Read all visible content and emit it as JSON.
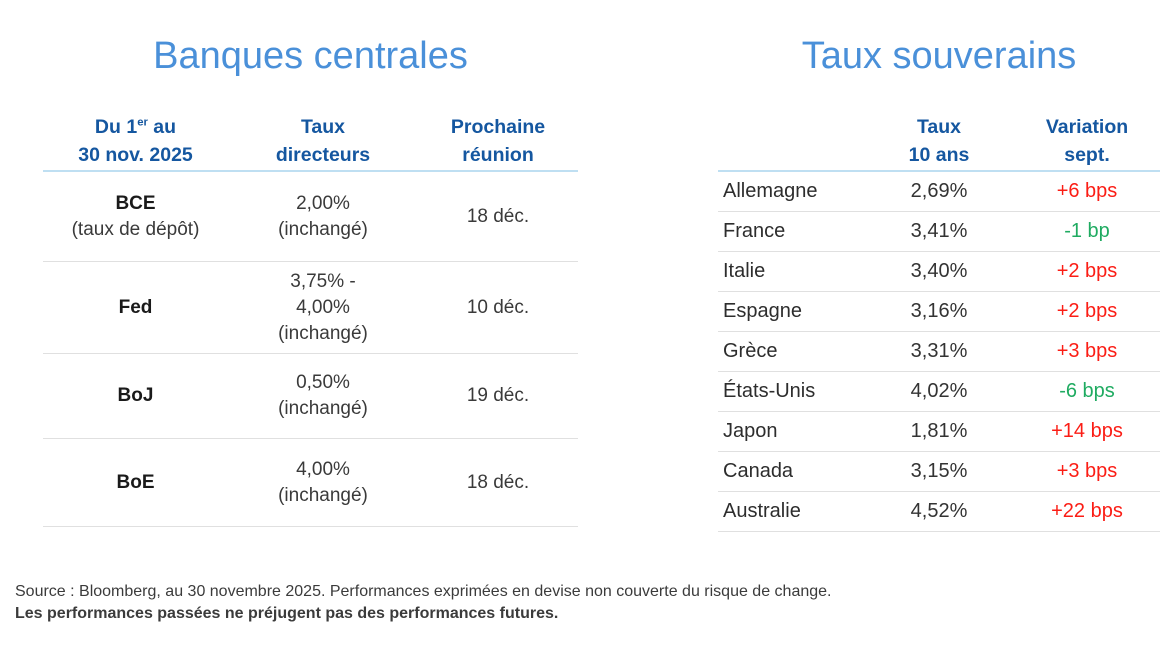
{
  "left_table": {
    "title": "Banques centrales",
    "header": {
      "col1_line1_prefix": "Du 1",
      "col1_line1_sup": "er",
      "col1_line1_suffix": " au",
      "col1_line2": "30 nov. 2025",
      "col2_line1": "Taux",
      "col2_line2": "directeurs",
      "col3_line1": "Prochaine",
      "col3_line2": "réunion"
    },
    "rows": [
      {
        "name": "BCE",
        "name_note": "(taux de dépôt)",
        "rate": [
          "2,00%",
          "(inchangé)"
        ],
        "next_meeting": "18 déc."
      },
      {
        "name": "Fed",
        "rate": [
          "3,75% -",
          "4,00%",
          "(inchangé)"
        ],
        "next_meeting": "10 déc."
      },
      {
        "name": "BoJ",
        "rate": [
          "0,50%",
          "(inchangé)"
        ],
        "next_meeting": "19 déc."
      },
      {
        "name": "BoE",
        "rate": [
          "4,00%",
          "(inchangé)"
        ],
        "next_meeting": "18 déc."
      }
    ]
  },
  "right_table": {
    "title": "Taux souverains",
    "header": {
      "col2_line1": "Taux",
      "col2_line2": "10 ans",
      "col3_line1": "Variation",
      "col3_line2": "sept."
    },
    "rows": [
      {
        "country": "Allemagne",
        "rate": "2,69%",
        "change": "+6 bps"
      },
      {
        "country": "France",
        "rate": "3,41%",
        "change": "-1 bp"
      },
      {
        "country": "Italie",
        "rate": "3,40%",
        "change": "+2 bps"
      },
      {
        "country": "Espagne",
        "rate": "3,16%",
        "change": "+2 bps"
      },
      {
        "country": "Grèce",
        "rate": "3,31%",
        "change": "+3 bps"
      },
      {
        "country": "États-Unis",
        "rate": "4,02%",
        "change": "-6 bps"
      },
      {
        "country": "Japon",
        "rate": "1,81%",
        "change": "+14 bps"
      },
      {
        "country": "Canada",
        "rate": "3,15%",
        "change": "+3 bps"
      },
      {
        "country": "Australie",
        "rate": "4,52%",
        "change": "+22 bps"
      }
    ]
  },
  "footer": {
    "line1": "Source : Bloomberg, au 30 novembre 2025. Performances exprimées en devise non couverte du risque de change.",
    "line2": "Les performances passées ne préjugent pas des performances futures."
  },
  "colors": {
    "title_blue": "#4A90D9",
    "header_blue": "#1557A0",
    "rule_blue": "#BFDFF2",
    "rule_gray": "#E0E0E0",
    "red": "#FB1D15",
    "green": "#1FAB61"
  }
}
